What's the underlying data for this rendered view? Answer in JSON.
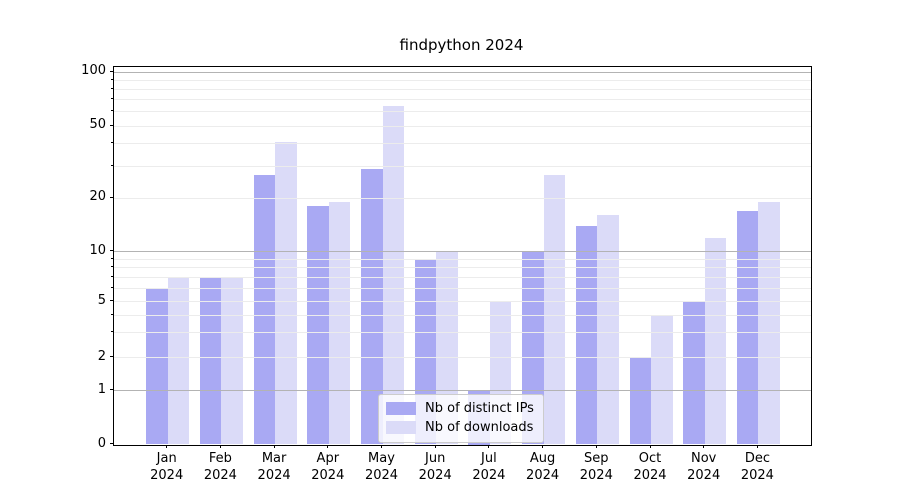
{
  "title": "findpython 2024",
  "chart_data": {
    "type": "bar",
    "title": "findpython 2024",
    "categories": [
      "Jan",
      "Feb",
      "Mar",
      "Apr",
      "May",
      "Jun",
      "Jul",
      "Aug",
      "Sep",
      "Oct",
      "Nov",
      "Dec"
    ],
    "xtick_year": "2024",
    "series": [
      {
        "name": "Nb of distinct IPs",
        "color": "#a9a9f3",
        "values": [
          6,
          7,
          27,
          18,
          29,
          9,
          1,
          10,
          14,
          2,
          5,
          17
        ]
      },
      {
        "name": "Nb of downloads",
        "color": "#dbdbf8",
        "values": [
          7,
          7,
          41,
          19,
          65,
          10,
          5,
          27,
          16,
          4,
          12,
          19
        ]
      }
    ],
    "xlabel": "",
    "ylabel": "",
    "yscale": "symlog",
    "ylim": [
      0,
      110
    ],
    "ytick_labels": [
      100,
      50,
      20,
      10,
      5,
      2,
      1,
      0
    ],
    "minor_gridline_values": [
      2,
      3,
      4,
      5,
      6,
      7,
      8,
      9,
      20,
      30,
      40,
      50,
      60,
      70,
      80,
      90
    ],
    "major_gridline_values": [
      1,
      10,
      100
    ],
    "grid": true,
    "legend_position": "lower center"
  },
  "colors": {
    "distinct_ips_bar": "#a9a9f3",
    "downloads_bar": "#dbdbf8",
    "minor_grid": "#ececec",
    "major_grid": "#b3b3b3",
    "spine": "#000000",
    "legend_border": "#cccccc",
    "background": "#ffffff"
  }
}
